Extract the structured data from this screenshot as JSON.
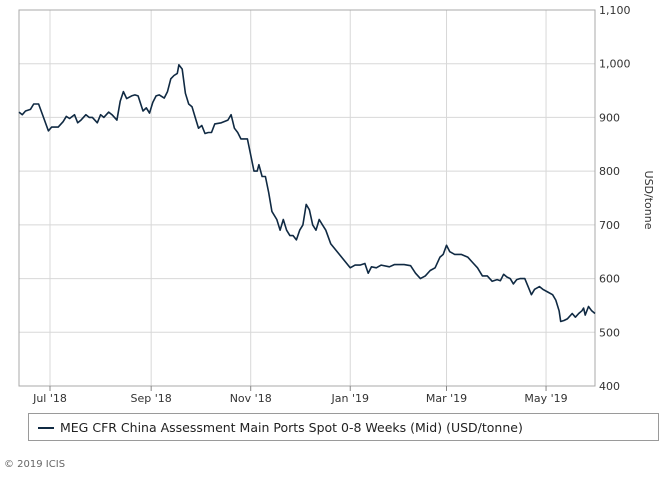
{
  "chart_data": {
    "type": "line",
    "title": "",
    "xlabel": "",
    "ylabel": "USD/tonne",
    "ylim": [
      400,
      1100
    ],
    "yticks": [
      "1,100",
      "1,000",
      "900",
      "800",
      "700",
      "600",
      "500",
      "400"
    ],
    "ytick_values": [
      1100,
      1000,
      900,
      800,
      700,
      600,
      500,
      400
    ],
    "xticks": [
      "Jul '18",
      "Sep '18",
      "Nov '18",
      "Jan '19",
      "Mar '19",
      "May '19"
    ],
    "xtick_dates": [
      "2018-07-01",
      "2018-09-01",
      "2018-11-01",
      "2019-01-01",
      "2019-03-01",
      "2019-05-01"
    ],
    "xlim": [
      "2018-06-12",
      "2019-05-31"
    ],
    "grid": true,
    "legend_position": "bottom",
    "series": [
      {
        "name": "MEG CFR China Assessment Main Ports Spot 0-8 Weeks (Mid) (USD/tonne)",
        "color": "#102a43",
        "points": [
          [
            "2018-06-12",
            910
          ],
          [
            "2018-06-14",
            905
          ],
          [
            "2018-06-16",
            912
          ],
          [
            "2018-06-19",
            915
          ],
          [
            "2018-06-21",
            925
          ],
          [
            "2018-06-24",
            925
          ],
          [
            "2018-06-27",
            900
          ],
          [
            "2018-06-30",
            875
          ],
          [
            "2018-07-02",
            882
          ],
          [
            "2018-07-06",
            882
          ],
          [
            "2018-07-09",
            892
          ],
          [
            "2018-07-11",
            902
          ],
          [
            "2018-07-13",
            898
          ],
          [
            "2018-07-16",
            905
          ],
          [
            "2018-07-18",
            890
          ],
          [
            "2018-07-20",
            895
          ],
          [
            "2018-07-23",
            905
          ],
          [
            "2018-07-25",
            900
          ],
          [
            "2018-07-27",
            900
          ],
          [
            "2018-07-30",
            890
          ],
          [
            "2018-08-01",
            905
          ],
          [
            "2018-08-03",
            900
          ],
          [
            "2018-08-06",
            910
          ],
          [
            "2018-08-08",
            905
          ],
          [
            "2018-08-11",
            895
          ],
          [
            "2018-08-13",
            930
          ],
          [
            "2018-08-15",
            948
          ],
          [
            "2018-08-17",
            935
          ],
          [
            "2018-08-20",
            940
          ],
          [
            "2018-08-22",
            942
          ],
          [
            "2018-08-24",
            940
          ],
          [
            "2018-08-27",
            912
          ],
          [
            "2018-08-29",
            918
          ],
          [
            "2018-08-31",
            908
          ],
          [
            "2018-09-02",
            928
          ],
          [
            "2018-09-04",
            940
          ],
          [
            "2018-09-06",
            942
          ],
          [
            "2018-09-09",
            936
          ],
          [
            "2018-09-11",
            948
          ],
          [
            "2018-09-13",
            972
          ],
          [
            "2018-09-15",
            978
          ],
          [
            "2018-09-17",
            982
          ],
          [
            "2018-09-18",
            998
          ],
          [
            "2018-09-20",
            990
          ],
          [
            "2018-09-22",
            945
          ],
          [
            "2018-09-24",
            925
          ],
          [
            "2018-09-26",
            920
          ],
          [
            "2018-09-28",
            900
          ],
          [
            "2018-09-30",
            880
          ],
          [
            "2018-10-02",
            885
          ],
          [
            "2018-10-04",
            870
          ],
          [
            "2018-10-06",
            872
          ],
          [
            "2018-10-08",
            872
          ],
          [
            "2018-10-10",
            888
          ],
          [
            "2018-10-14",
            890
          ],
          [
            "2018-10-18",
            895
          ],
          [
            "2018-10-20",
            905
          ],
          [
            "2018-10-22",
            880
          ],
          [
            "2018-10-24",
            872
          ],
          [
            "2018-10-26",
            860
          ],
          [
            "2018-10-30",
            860
          ],
          [
            "2018-11-01",
            830
          ],
          [
            "2018-11-03",
            800
          ],
          [
            "2018-11-05",
            800
          ],
          [
            "2018-11-06",
            812
          ],
          [
            "2018-11-08",
            790
          ],
          [
            "2018-11-10",
            790
          ],
          [
            "2018-11-12",
            760
          ],
          [
            "2018-11-14",
            725
          ],
          [
            "2018-11-17",
            710
          ],
          [
            "2018-11-19",
            690
          ],
          [
            "2018-11-21",
            710
          ],
          [
            "2018-11-23",
            690
          ],
          [
            "2018-11-25",
            680
          ],
          [
            "2018-11-27",
            680
          ],
          [
            "2018-11-29",
            672
          ],
          [
            "2018-12-01",
            690
          ],
          [
            "2018-12-03",
            700
          ],
          [
            "2018-12-05",
            738
          ],
          [
            "2018-12-07",
            728
          ],
          [
            "2018-12-09",
            700
          ],
          [
            "2018-12-11",
            690
          ],
          [
            "2018-12-13",
            710
          ],
          [
            "2018-12-15",
            700
          ],
          [
            "2018-12-17",
            690
          ],
          [
            "2018-12-20",
            665
          ],
          [
            "2018-12-24",
            650
          ],
          [
            "2018-12-28",
            635
          ],
          [
            "2019-01-01",
            620
          ],
          [
            "2019-01-04",
            625
          ],
          [
            "2019-01-07",
            625
          ],
          [
            "2019-01-10",
            628
          ],
          [
            "2019-01-12",
            610
          ],
          [
            "2019-01-14",
            622
          ],
          [
            "2019-01-17",
            620
          ],
          [
            "2019-01-20",
            625
          ],
          [
            "2019-01-25",
            622
          ],
          [
            "2019-01-28",
            626
          ],
          [
            "2019-02-03",
            626
          ],
          [
            "2019-02-07",
            624
          ],
          [
            "2019-02-10",
            610
          ],
          [
            "2019-02-13",
            600
          ],
          [
            "2019-02-16",
            605
          ],
          [
            "2019-02-19",
            615
          ],
          [
            "2019-02-22",
            620
          ],
          [
            "2019-02-25",
            640
          ],
          [
            "2019-02-27",
            645
          ],
          [
            "2019-03-01",
            662
          ],
          [
            "2019-03-03",
            650
          ],
          [
            "2019-03-06",
            645
          ],
          [
            "2019-03-10",
            645
          ],
          [
            "2019-03-14",
            640
          ],
          [
            "2019-03-17",
            630
          ],
          [
            "2019-03-20",
            620
          ],
          [
            "2019-03-23",
            605
          ],
          [
            "2019-03-26",
            605
          ],
          [
            "2019-03-29",
            595
          ],
          [
            "2019-04-01",
            598
          ],
          [
            "2019-04-03",
            596
          ],
          [
            "2019-04-05",
            608
          ],
          [
            "2019-04-07",
            603
          ],
          [
            "2019-04-09",
            600
          ],
          [
            "2019-04-11",
            590
          ],
          [
            "2019-04-13",
            598
          ],
          [
            "2019-04-15",
            600
          ],
          [
            "2019-04-18",
            600
          ],
          [
            "2019-04-20",
            585
          ],
          [
            "2019-04-22",
            570
          ],
          [
            "2019-04-24",
            580
          ],
          [
            "2019-04-27",
            585
          ],
          [
            "2019-04-29",
            580
          ],
          [
            "2019-05-02",
            575
          ],
          [
            "2019-05-05",
            570
          ],
          [
            "2019-05-07",
            560
          ],
          [
            "2019-05-09",
            540
          ],
          [
            "2019-05-10",
            520
          ],
          [
            "2019-05-12",
            522
          ],
          [
            "2019-05-14",
            525
          ],
          [
            "2019-05-17",
            535
          ],
          [
            "2019-05-19",
            528
          ],
          [
            "2019-05-21",
            535
          ],
          [
            "2019-05-23",
            540
          ],
          [
            "2019-05-24",
            545
          ],
          [
            "2019-05-25",
            532
          ],
          [
            "2019-05-27",
            548
          ],
          [
            "2019-05-29",
            540
          ],
          [
            "2019-05-31",
            535
          ]
        ]
      }
    ]
  },
  "copyright": "© 2019 ICIS"
}
